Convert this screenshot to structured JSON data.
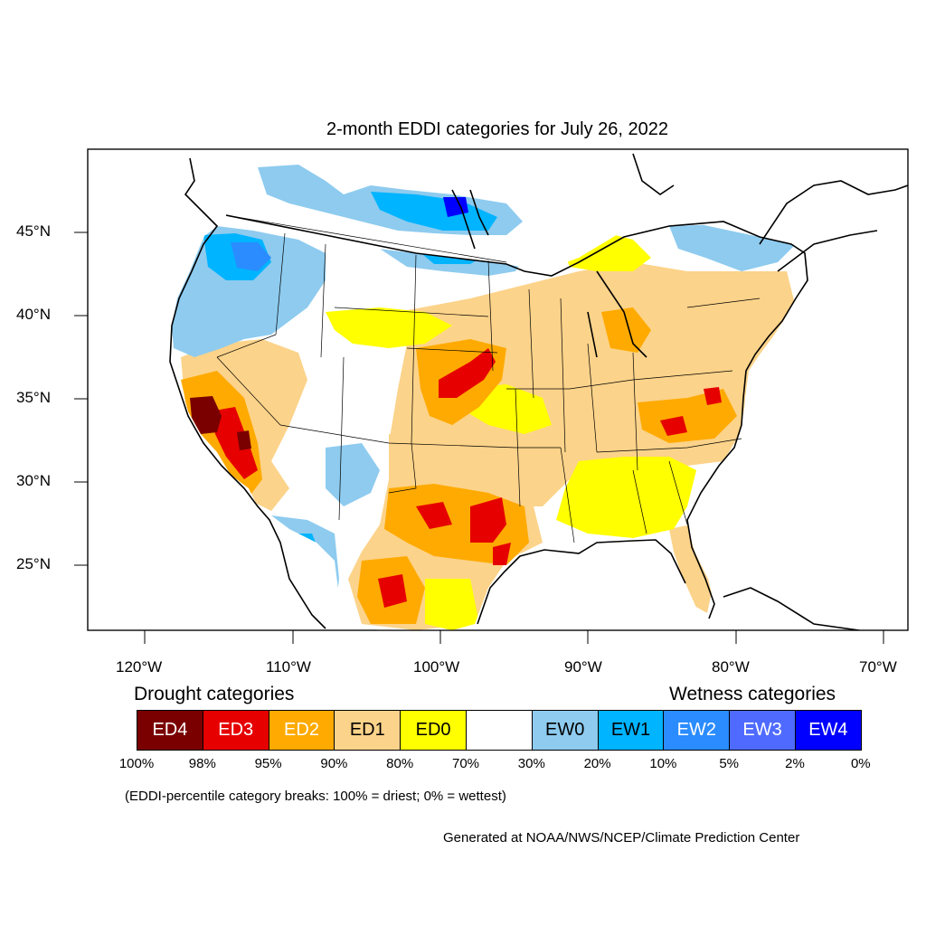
{
  "title": "2-month EDDI categories for July 26, 2022",
  "lat_labels": [
    "45°N",
    "40°N",
    "35°N",
    "30°N",
    "25°N"
  ],
  "lon_labels": [
    "120°W",
    "110°W",
    "100°W",
    "90°W",
    "80°W",
    "70°W"
  ],
  "legend": {
    "drought_heading": "Drought categories",
    "wetness_heading": "Wetness categories",
    "categories": [
      {
        "label": "ED4",
        "color": "#7a0000",
        "text_color": "#ffffff"
      },
      {
        "label": "ED3",
        "color": "#e60000",
        "text_color": "#ffffff"
      },
      {
        "label": "ED2",
        "color": "#ffaa00",
        "text_color": "#ffffff"
      },
      {
        "label": "ED1",
        "color": "#fcd38a",
        "text_color": "#000000"
      },
      {
        "label": "ED0",
        "color": "#ffff00",
        "text_color": "#000000"
      },
      {
        "label": "",
        "color": "#ffffff",
        "text_color": "#000000"
      },
      {
        "label": "EW0",
        "color": "#8ecbef",
        "text_color": "#000000"
      },
      {
        "label": "EW1",
        "color": "#00b4ff",
        "text_color": "#000000"
      },
      {
        "label": "EW2",
        "color": "#2a8cff",
        "text_color": "#ffffff"
      },
      {
        "label": "EW3",
        "color": "#4f6bff",
        "text_color": "#ffffff"
      },
      {
        "label": "EW4",
        "color": "#0000ff",
        "text_color": "#ffffff"
      }
    ],
    "percent_breaks": [
      "100%",
      "98%",
      "95%",
      "90%",
      "80%",
      "70%",
      "30%",
      "20%",
      "10%",
      "5%",
      "2%",
      "0%"
    ]
  },
  "note": "(EDDI-percentile category breaks: 100% = driest; 0% = wettest)",
  "credit": "Generated at NOAA/NWS/NCEP/Climate Prediction Center"
}
